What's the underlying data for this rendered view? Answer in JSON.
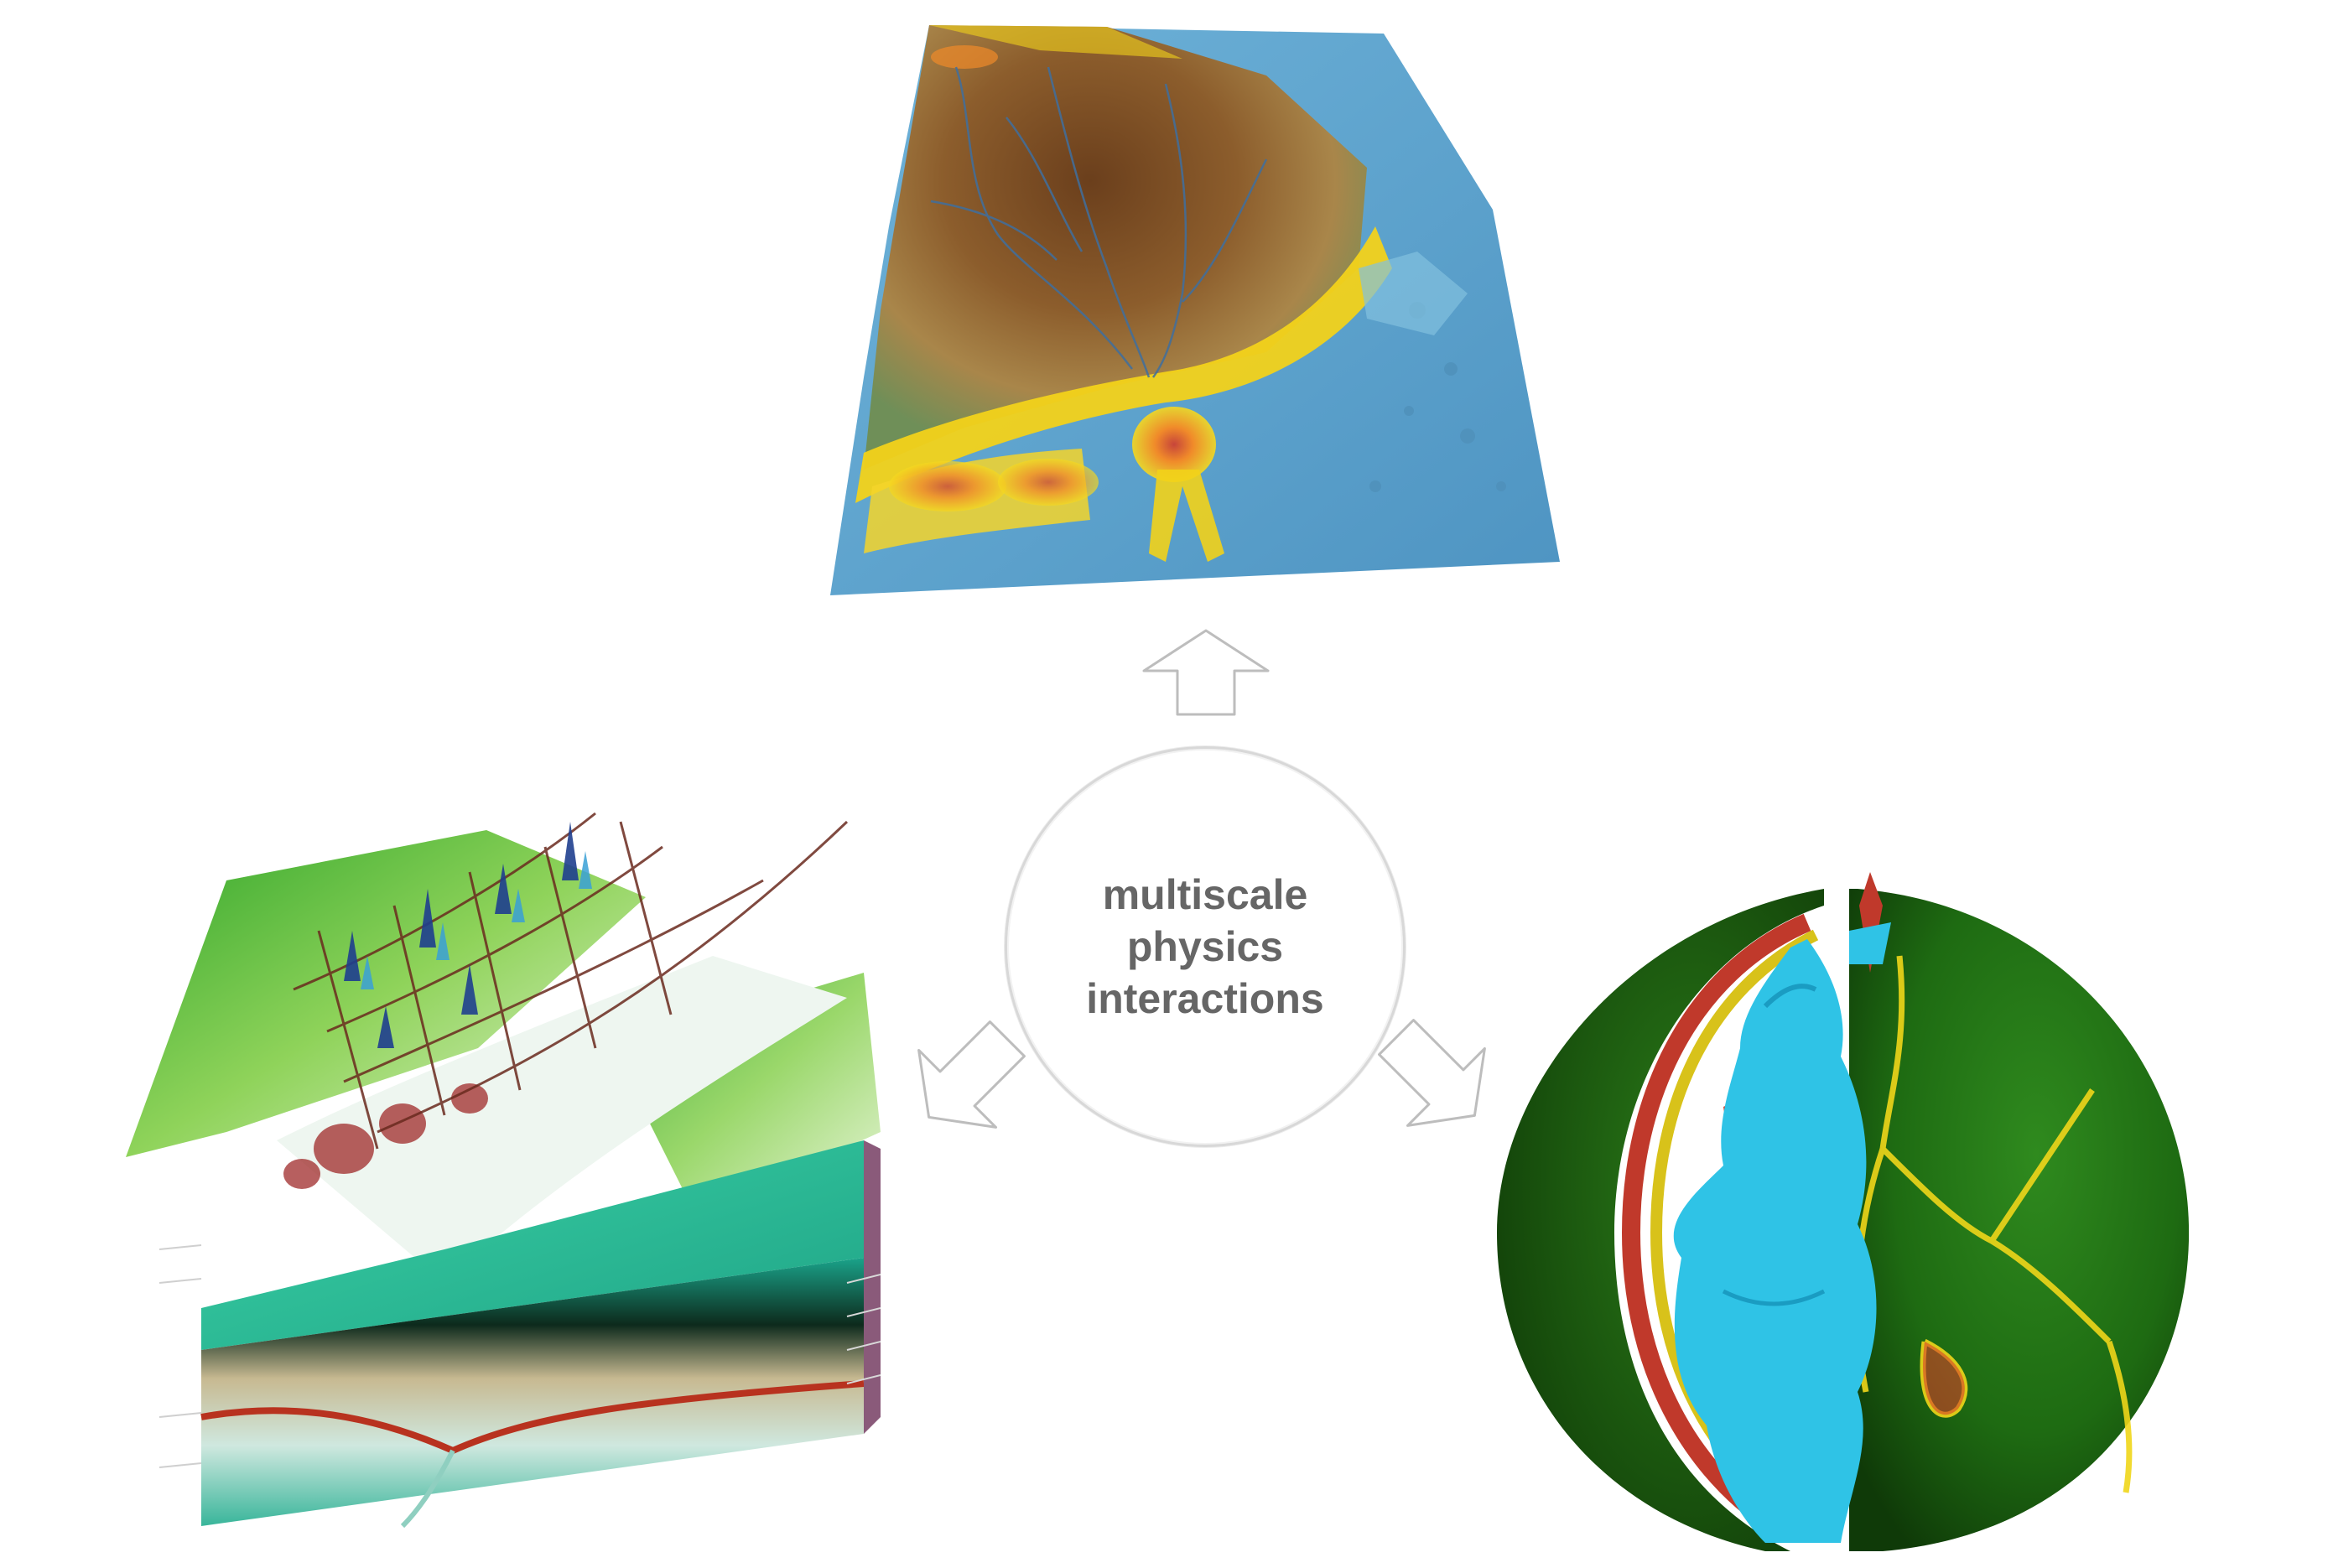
{
  "center": {
    "lines": [
      "multiscale",
      "physics",
      "interactions"
    ]
  },
  "panels": {
    "top": "landscape-erosion-terrain",
    "left": "tectonic-fault-seismic-model",
    "right": "mantle-convection-earth-cutaway"
  },
  "colors": {
    "arrow_stroke": "#bdbdbd",
    "circle_border": "#d8d8d8",
    "text": "#666666",
    "terrain_brown": "#8a5a2b",
    "water_blue": "#5fa7d4",
    "sediment_yellow": "#f2d21a",
    "earth_green": "#1e6b12",
    "plume_cyan": "#2fc3e6",
    "core_red": "#d8412a",
    "crust_teal": "#2fbf9a"
  }
}
